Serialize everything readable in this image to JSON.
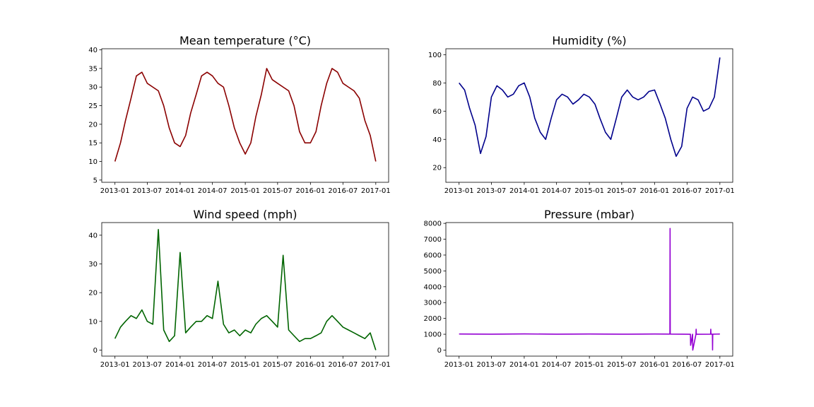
{
  "chart_data": [
    {
      "type": "line",
      "title": "Mean temperature (°C)",
      "color": "#8b0000",
      "xlabel": "",
      "ylabel": "",
      "xlim": [
        "2012-10-19",
        "2017-03-14"
      ],
      "ylim": [
        4.4,
        40.3
      ],
      "yticks": [
        5,
        10,
        15,
        20,
        25,
        30,
        35,
        40
      ],
      "xtick_labels": [
        "2013-01",
        "2013-07",
        "2014-01",
        "2014-07",
        "2015-01",
        "2015-07",
        "2016-01",
        "2016-07",
        "2017-01"
      ],
      "grid": false,
      "x": [
        "2013-01-01",
        "2013-02-01",
        "2013-03-01",
        "2013-04-01",
        "2013-05-01",
        "2013-06-01",
        "2013-07-01",
        "2013-08-01",
        "2013-09-01",
        "2013-10-01",
        "2013-11-01",
        "2013-12-01",
        "2014-01-01",
        "2014-02-01",
        "2014-03-01",
        "2014-04-01",
        "2014-05-01",
        "2014-06-01",
        "2014-07-01",
        "2014-08-01",
        "2014-09-01",
        "2014-10-01",
        "2014-11-01",
        "2014-12-01",
        "2015-01-01",
        "2015-02-01",
        "2015-03-01",
        "2015-04-01",
        "2015-05-01",
        "2015-06-01",
        "2015-07-01",
        "2015-08-01",
        "2015-09-01",
        "2015-10-01",
        "2015-11-01",
        "2015-12-01",
        "2016-01-01",
        "2016-02-01",
        "2016-03-01",
        "2016-04-01",
        "2016-05-01",
        "2016-06-01",
        "2016-07-01",
        "2016-08-01",
        "2016-09-01",
        "2016-10-01",
        "2016-11-01",
        "2016-12-01",
        "2017-01-01"
      ],
      "y": [
        10,
        15,
        21,
        27,
        33,
        34,
        31,
        30,
        29,
        25,
        19,
        15,
        14,
        17,
        23,
        28,
        33,
        34,
        33,
        31,
        30,
        25,
        19,
        15,
        12,
        15,
        22,
        28,
        35,
        32,
        31,
        30,
        29,
        25,
        18,
        15,
        15,
        18,
        25,
        31,
        35,
        34,
        31,
        30,
        29,
        27,
        21,
        17,
        10
      ]
    },
    {
      "type": "line",
      "title": "Humidity (%)",
      "color": "#00008b",
      "xlabel": "",
      "ylabel": "",
      "xlim": [
        "2012-10-19",
        "2017-03-14"
      ],
      "ylim": [
        9.6,
        104.2
      ],
      "yticks": [
        20,
        40,
        60,
        80,
        100
      ],
      "xtick_labels": [
        "2013-01",
        "2013-07",
        "2014-01",
        "2014-07",
        "2015-01",
        "2015-07",
        "2016-01",
        "2016-07",
        "2017-01"
      ],
      "grid": false,
      "x": [
        "2013-01-01",
        "2013-02-01",
        "2013-03-01",
        "2013-04-01",
        "2013-05-01",
        "2013-06-01",
        "2013-07-01",
        "2013-08-01",
        "2013-09-01",
        "2013-10-01",
        "2013-11-01",
        "2013-12-01",
        "2014-01-01",
        "2014-02-01",
        "2014-03-01",
        "2014-04-01",
        "2014-05-01",
        "2014-06-01",
        "2014-07-01",
        "2014-08-01",
        "2014-09-01",
        "2014-10-01",
        "2014-11-01",
        "2014-12-01",
        "2015-01-01",
        "2015-02-01",
        "2015-03-01",
        "2015-04-01",
        "2015-05-01",
        "2015-06-01",
        "2015-07-01",
        "2015-08-01",
        "2015-09-01",
        "2015-10-01",
        "2015-11-01",
        "2015-12-01",
        "2016-01-01",
        "2016-02-01",
        "2016-03-01",
        "2016-04-01",
        "2016-05-01",
        "2016-06-01",
        "2016-07-01",
        "2016-08-01",
        "2016-09-01",
        "2016-10-01",
        "2016-11-01",
        "2016-12-01",
        "2017-01-01"
      ],
      "y": [
        80,
        75,
        62,
        50,
        30,
        42,
        70,
        78,
        75,
        70,
        72,
        78,
        80,
        70,
        55,
        45,
        40,
        55,
        68,
        72,
        70,
        65,
        68,
        72,
        70,
        65,
        55,
        45,
        40,
        55,
        70,
        75,
        70,
        68,
        70,
        74,
        75,
        65,
        55,
        40,
        28,
        35,
        62,
        70,
        68,
        60,
        62,
        70,
        98
      ]
    },
    {
      "type": "line",
      "title": "Wind speed (mph)",
      "color": "#006400",
      "xlabel": "",
      "ylabel": "",
      "xlim": [
        "2012-10-19",
        "2017-03-14"
      ],
      "ylim": [
        -2.1,
        44.4
      ],
      "yticks": [
        0,
        10,
        20,
        30,
        40
      ],
      "xtick_labels": [
        "2013-01",
        "2013-07",
        "2014-01",
        "2014-07",
        "2015-01",
        "2015-07",
        "2016-01",
        "2016-07",
        "2017-01"
      ],
      "grid": false,
      "x": [
        "2013-01-01",
        "2013-02-01",
        "2013-03-01",
        "2013-04-01",
        "2013-05-01",
        "2013-06-01",
        "2013-07-01",
        "2013-08-01",
        "2013-09-01",
        "2013-10-01",
        "2013-11-01",
        "2013-12-01",
        "2014-01-01",
        "2014-02-01",
        "2014-03-01",
        "2014-04-01",
        "2014-05-01",
        "2014-06-01",
        "2014-07-01",
        "2014-08-01",
        "2014-09-01",
        "2014-10-01",
        "2014-11-01",
        "2014-12-01",
        "2015-01-01",
        "2015-02-01",
        "2015-03-01",
        "2015-04-01",
        "2015-05-01",
        "2015-06-01",
        "2015-07-01",
        "2015-08-01",
        "2015-09-01",
        "2015-10-01",
        "2015-11-01",
        "2015-12-01",
        "2016-01-01",
        "2016-02-01",
        "2016-03-01",
        "2016-04-01",
        "2016-05-01",
        "2016-06-01",
        "2016-07-01",
        "2016-08-01",
        "2016-09-01",
        "2016-10-01",
        "2016-11-01",
        "2016-12-01",
        "2017-01-01"
      ],
      "y": [
        4,
        8,
        10,
        12,
        11,
        14,
        10,
        9,
        42,
        7,
        3,
        5,
        34,
        6,
        8,
        10,
        10,
        12,
        11,
        24,
        9,
        6,
        7,
        5,
        7,
        6,
        9,
        11,
        12,
        10,
        8,
        33,
        7,
        5,
        3,
        4,
        4,
        5,
        6,
        10,
        12,
        10,
        8,
        7,
        6,
        5,
        4,
        6,
        0
      ]
    },
    {
      "type": "line",
      "title": "Pressure (mbar)",
      "color": "#9400d3",
      "xlabel": "",
      "ylabel": "",
      "xlim": [
        "2012-10-19",
        "2017-03-14"
      ],
      "ylim": [
        -380,
        8050
      ],
      "yticks": [
        0,
        1000,
        2000,
        3000,
        4000,
        5000,
        6000,
        7000,
        8000
      ],
      "xtick_labels": [
        "2013-01",
        "2013-07",
        "2014-01",
        "2014-07",
        "2015-01",
        "2015-07",
        "2016-01",
        "2016-07",
        "2017-01"
      ],
      "grid": false,
      "x": [
        "2013-01-01",
        "2013-07-01",
        "2014-01-01",
        "2014-07-01",
        "2015-01-01",
        "2015-07-01",
        "2016-01-01",
        "2016-03-27",
        "2016-03-28",
        "2016-03-29",
        "2016-06-01",
        "2016-07-20",
        "2016-07-21",
        "2016-08-01",
        "2016-08-02",
        "2016-08-20",
        "2016-08-21",
        "2016-08-22",
        "2016-11-10",
        "2016-11-11",
        "2016-11-12",
        "2016-11-20",
        "2016-11-21",
        "2016-11-22",
        "2017-01-01"
      ],
      "y": [
        1017,
        1005,
        1022,
        1005,
        1018,
        1005,
        1015,
        1012,
        7680,
        1010,
        1005,
        1002,
        300,
        1002,
        0,
        1002,
        1320,
        1002,
        1005,
        1320,
        1008,
        1005,
        10,
        1005,
        1015
      ]
    }
  ]
}
